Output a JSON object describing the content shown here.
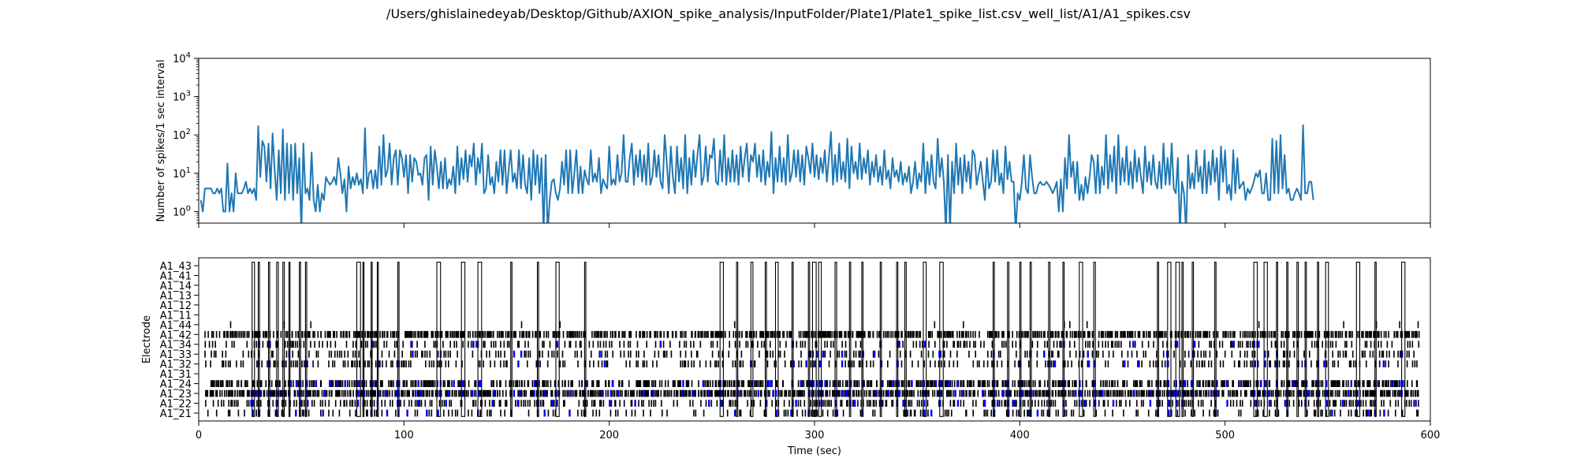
{
  "figure_title": "/Users/ghislainedeyab/Desktop/Github/AXION_spike_analysis/InputFolder/Plate1/Plate1_spike_list.csv_well_list/A1/A1_spikes.csv",
  "chart_data": [
    {
      "type": "line",
      "title": "",
      "xlabel": "",
      "ylabel": "Number of spikes/1 sec interval",
      "yscale": "log",
      "ylim": [
        0.5,
        10000
      ],
      "xlim": [
        0,
        600
      ],
      "y_ticks": [
        {
          "value": 1,
          "base": "10",
          "exp": "0"
        },
        {
          "value": 10,
          "base": "10",
          "exp": "1"
        },
        {
          "value": 100,
          "base": "10",
          "exp": "2"
        },
        {
          "value": 1000,
          "base": "10",
          "exp": "3"
        },
        {
          "value": 10000,
          "base": "10",
          "exp": "4"
        }
      ],
      "line_color": "#1f77b4",
      "grid": false,
      "series": [
        {
          "x_start": 1,
          "x_step": 1,
          "values": [
            2,
            1,
            4,
            4,
            4,
            4,
            3,
            3,
            4,
            3,
            4,
            1,
            1,
            18,
            1,
            3,
            1,
            10,
            3,
            3,
            3,
            4,
            6,
            3,
            4,
            3,
            4,
            2,
            170,
            8,
            70,
            50,
            6,
            60,
            4,
            110,
            12,
            2,
            40,
            3,
            140,
            2,
            60,
            3,
            55,
            2,
            60,
            3,
            25,
            0.3,
            60,
            3,
            4,
            2,
            35,
            2,
            1,
            5,
            1,
            3,
            2,
            8,
            6,
            5,
            6,
            8,
            5,
            25,
            10,
            3,
            7,
            1,
            15,
            4,
            8,
            5,
            10,
            5,
            7,
            3,
            150,
            4,
            10,
            12,
            4,
            12,
            4,
            50,
            5,
            100,
            8,
            12,
            60,
            5,
            25,
            40,
            5,
            40,
            25,
            8,
            30,
            3,
            30,
            6,
            25,
            20,
            9,
            10,
            5,
            25,
            30,
            2,
            50,
            5,
            40,
            15,
            4,
            20,
            4,
            25,
            4,
            7,
            5,
            15,
            3,
            50,
            5,
            25,
            7,
            40,
            6,
            30,
            15,
            60,
            5,
            25,
            10,
            60,
            3,
            4,
            30,
            5,
            8,
            3,
            20,
            6,
            40,
            5,
            40,
            3,
            12,
            40,
            6,
            10,
            4,
            40,
            4,
            30,
            5,
            3,
            25,
            2,
            40,
            5,
            30,
            3,
            25,
            0.3,
            30,
            0.3,
            2,
            6,
            7,
            3,
            2,
            4,
            20,
            5,
            40,
            3,
            40,
            3,
            10,
            40,
            3,
            15,
            3,
            12,
            7,
            5,
            40,
            6,
            10,
            6,
            25,
            3,
            7,
            5,
            4,
            50,
            5,
            7,
            5,
            30,
            6,
            10,
            100,
            6,
            6,
            25,
            60,
            5,
            30,
            8,
            40,
            6,
            30,
            5,
            60,
            5,
            8,
            40,
            8,
            30,
            6,
            4,
            100,
            20,
            3,
            50,
            8,
            3,
            50,
            6,
            25,
            4,
            100,
            3,
            25,
            5,
            40,
            8,
            30,
            100,
            5,
            8,
            50,
            6,
            30,
            25,
            80,
            6,
            5,
            40,
            6,
            100,
            5,
            25,
            6,
            40,
            6,
            30,
            5,
            50,
            8,
            25,
            60,
            6,
            30,
            20,
            60,
            8,
            30,
            6,
            40,
            5,
            20,
            8,
            120,
            3,
            25,
            6,
            50,
            6,
            25,
            5,
            100,
            6,
            10,
            40,
            8,
            40,
            6,
            30,
            5,
            50,
            25,
            10,
            60,
            8,
            30,
            7,
            25,
            10,
            40,
            6,
            25,
            120,
            5,
            30,
            6,
            60,
            7,
            20,
            6,
            80,
            4,
            50,
            10,
            20,
            7,
            60,
            7,
            25,
            10,
            40,
            5,
            20,
            8,
            30,
            6,
            15,
            5,
            40,
            7,
            12,
            4,
            25,
            8,
            12,
            6,
            20,
            5,
            10,
            6,
            15,
            3,
            6,
            20,
            4,
            10,
            6,
            60,
            3,
            20,
            5,
            30,
            6,
            4,
            80,
            8,
            25,
            6,
            0.3,
            30,
            0.3,
            20,
            3,
            60,
            5,
            25,
            3,
            30,
            6,
            20,
            4,
            40,
            30,
            5,
            10,
            20,
            6,
            2,
            25,
            4,
            6,
            40,
            6,
            40,
            5,
            10,
            3,
            50,
            7,
            20,
            6,
            6,
            0.3,
            3,
            2,
            6,
            30,
            4,
            3,
            30,
            8,
            3,
            3,
            5,
            6,
            5,
            5,
            6,
            5,
            4,
            3,
            4,
            6,
            1,
            7,
            1,
            25,
            4,
            100,
            8,
            20,
            3,
            20,
            2,
            5,
            2,
            8,
            3,
            8,
            30,
            20,
            3,
            30,
            3,
            15,
            5,
            100,
            4,
            30,
            6,
            50,
            3,
            100,
            5,
            25,
            6,
            50,
            5,
            20,
            4,
            40,
            6,
            25,
            8,
            3,
            50,
            6,
            20,
            5,
            30,
            6,
            4,
            20,
            4,
            60,
            5,
            25,
            5,
            60,
            4,
            3,
            25,
            0.3,
            6,
            3,
            0.3,
            30,
            4,
            10,
            4,
            40,
            6,
            15,
            3,
            40,
            3,
            20,
            5,
            40,
            6,
            25,
            2,
            50,
            6,
            40,
            3,
            5,
            2,
            40,
            3,
            25,
            4,
            5,
            6,
            2,
            4,
            3,
            4,
            6,
            10,
            8,
            12,
            3,
            3,
            10,
            2,
            2,
            80,
            3,
            70,
            3,
            100,
            4,
            30,
            3,
            4,
            2,
            2,
            3,
            4,
            3,
            2,
            180,
            3,
            3,
            6,
            6,
            2
          ]
        }
      ]
    },
    {
      "type": "raster",
      "title": "",
      "xlabel": "Time (sec)",
      "ylabel": "Electrode",
      "xlim": [
        0,
        600
      ],
      "x_ticks": [
        0,
        100,
        200,
        300,
        400,
        500,
        600
      ],
      "electrodes": [
        "A1_21",
        "A1_22",
        "A1_23",
        "A1_24",
        "A1_31",
        "A1_32",
        "A1_33",
        "A1_34",
        "A1_42",
        "A1_44",
        "A1_11",
        "A1_12",
        "A1_13",
        "A1_14",
        "A1_41",
        "A1_43"
      ],
      "spike_color": "#000000",
      "burst_color": "#0000ff",
      "network_burst_edge_color": "#000000",
      "network_bursts": [
        [
          26,
          27.2
        ],
        [
          29,
          29.6
        ],
        [
          34,
          34.6
        ],
        [
          38,
          38.8
        ],
        [
          41,
          41.7
        ],
        [
          44,
          44.5
        ],
        [
          49,
          49.6
        ],
        [
          52,
          52.6
        ],
        [
          77,
          78.8
        ],
        [
          80,
          80.5
        ],
        [
          84,
          84.5
        ],
        [
          87,
          87.5
        ],
        [
          97,
          97.6
        ],
        [
          116,
          117.8
        ],
        [
          128,
          129.7
        ],
        [
          136,
          137.8
        ],
        [
          152,
          152.6
        ],
        [
          165,
          165.6
        ],
        [
          174,
          175.6
        ],
        [
          188,
          188.6
        ],
        [
          254,
          255.6
        ],
        [
          262,
          262.6
        ],
        [
          269,
          270
        ],
        [
          276,
          276.6
        ],
        [
          281,
          282.3
        ],
        [
          289,
          289.6
        ],
        [
          297,
          297.6
        ],
        [
          299,
          300.8
        ],
        [
          302,
          303.3
        ],
        [
          310,
          310.8
        ],
        [
          317,
          317.6
        ],
        [
          323,
          323.6
        ],
        [
          332,
          332.6
        ],
        [
          340,
          340.6
        ],
        [
          344,
          344.7
        ],
        [
          353,
          354.4
        ],
        [
          361,
          362.7
        ],
        [
          387,
          387.6
        ],
        [
          394,
          394.7
        ],
        [
          400,
          400.6
        ],
        [
          405,
          405.6
        ],
        [
          414,
          414.7
        ],
        [
          421,
          421.6
        ],
        [
          429,
          430.6
        ],
        [
          436,
          436.8
        ],
        [
          467,
          467.6
        ],
        [
          472,
          473.6
        ],
        [
          476,
          477.8
        ],
        [
          479,
          479.6
        ],
        [
          484,
          484.6
        ],
        [
          495,
          495.6
        ],
        [
          514,
          515.7
        ],
        [
          519,
          520.6
        ],
        [
          525,
          525.6
        ],
        [
          530,
          530.6
        ],
        [
          535,
          535.7
        ],
        [
          539,
          539.6
        ],
        [
          545,
          545.6
        ],
        [
          549,
          550.4
        ],
        [
          564,
          565.6
        ],
        [
          573,
          573.6
        ],
        [
          586,
          587.6
        ]
      ],
      "rows": [
        {
          "label": "A1_21",
          "density": 0.32,
          "bursts": 0.35
        },
        {
          "label": "A1_22",
          "density": 0.55,
          "bursts": 0.55
        },
        {
          "label": "A1_23",
          "density": 0.95,
          "bursts": 0.85
        },
        {
          "label": "A1_24",
          "density": 0.7,
          "bursts": 0.75
        },
        {
          "label": "A1_31",
          "density": 0.0,
          "bursts": 0.0
        },
        {
          "label": "A1_32",
          "density": 0.38,
          "bursts": 0.4
        },
        {
          "label": "A1_33",
          "density": 0.4,
          "bursts": 0.15
        },
        {
          "label": "A1_34",
          "density": 0.45,
          "bursts": 0.15
        },
        {
          "label": "A1_42",
          "density": 0.85,
          "bursts": 0.0
        },
        {
          "label": "A1_44",
          "density": 0.03,
          "bursts": 0.0
        },
        {
          "label": "A1_11",
          "density": 0.0,
          "bursts": 0.0
        },
        {
          "label": "A1_12",
          "density": 0.0,
          "bursts": 0.0
        },
        {
          "label": "A1_13",
          "density": 0.0,
          "bursts": 0.0
        },
        {
          "label": "A1_14",
          "density": 0.0,
          "bursts": 0.0
        },
        {
          "label": "A1_41",
          "density": 0.0,
          "bursts": 0.0
        },
        {
          "label": "A1_43",
          "density": 0.0,
          "bursts": 0.0
        }
      ],
      "spike_range": [
        3,
        594
      ]
    }
  ]
}
